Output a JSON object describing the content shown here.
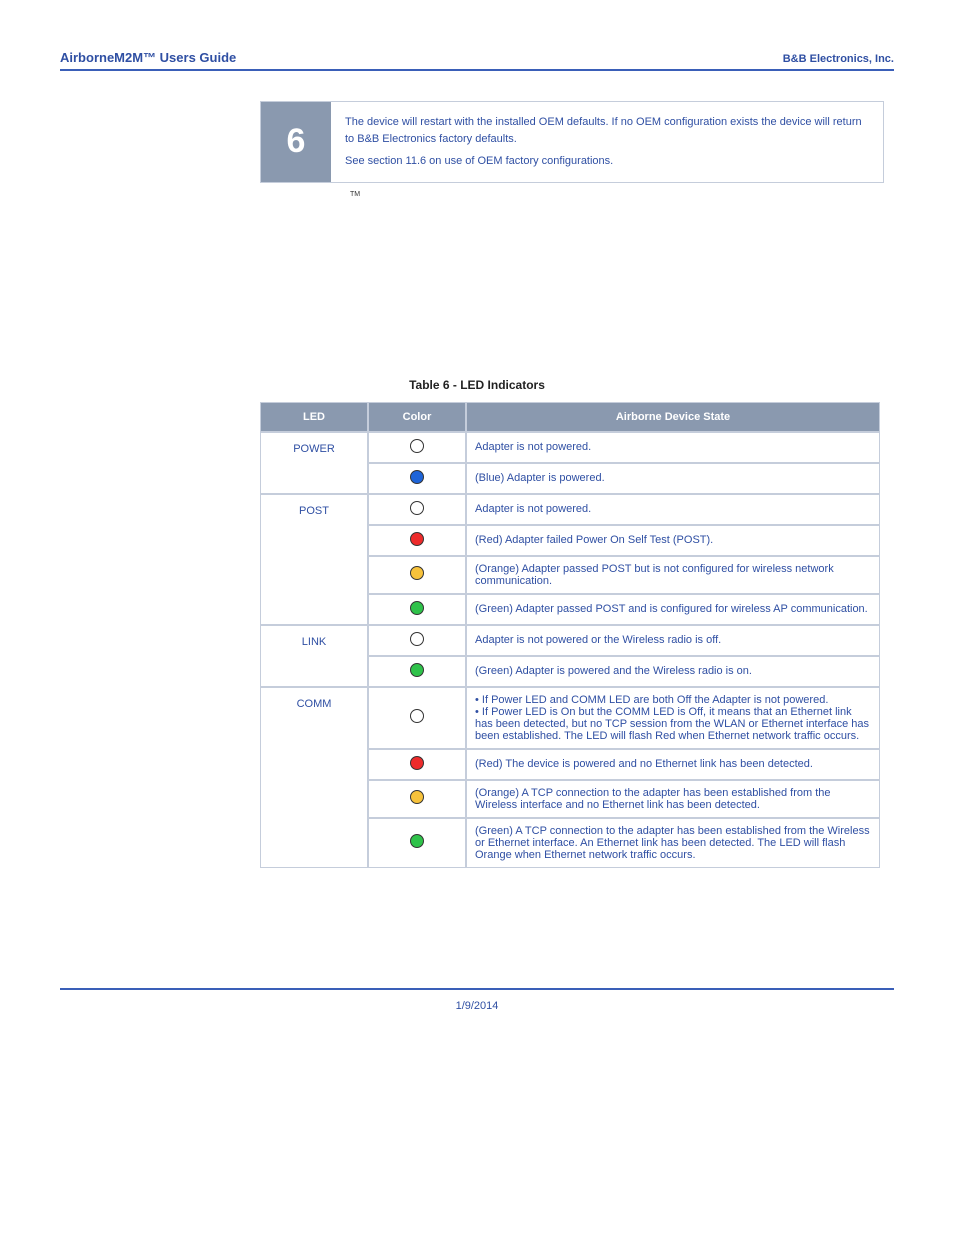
{
  "header": {
    "left": "AirborneM2M™ Users Guide",
    "right": "B&B Electronics, Inc."
  },
  "callout": {
    "number": "6",
    "p1": "The device will restart with the installed OEM defaults. If no OEM configuration exists the device will return to B&B Electronics factory defaults.",
    "p2": "See section 11.6 on use of OEM factory configurations."
  },
  "tm": "TM",
  "table_caption": "Table 6 - LED Indicators",
  "th": {
    "led": "LED",
    "color": "Color",
    "state": "Airborne Device State"
  },
  "colors": {
    "off": "#ffffff",
    "blue": "#1e64d8",
    "red": "#ed2b2b",
    "orange": "#f7c23b",
    "green": "#2fc24a"
  },
  "rows": {
    "power_label": "POWER",
    "power_off": "Adapter is not powered.",
    "power_blue": "(Blue) Adapter is powered.",
    "post_label": "POST",
    "post_off": "Adapter is not powered.",
    "post_red": "(Red) Adapter failed Power On Self Test (POST).",
    "post_orange": "(Orange) Adapter passed POST but is not configured for wireless network communication.",
    "post_green": "(Green) Adapter passed POST and is configured for wireless AP communication.",
    "link_label": "LINK",
    "link_off": "Adapter is not powered or the Wireless radio is off.",
    "link_green": "(Green) Adapter is powered and the Wireless radio is on.",
    "comm_label": "COMM",
    "comm_off_b1": "• If Power LED and COMM LED are both Off the Adapter is not powered.",
    "comm_off_b2": "• If Power LED is On but the COMM LED is Off, it means that an Ethernet link has been detected, but no TCP session from the WLAN or Ethernet interface has been established. The LED will flash Red when Ethernet network traffic occurs.",
    "comm_red": "(Red) The device is powered and no Ethernet link has been detected.",
    "comm_orange": "(Orange) A TCP connection to the adapter has been established from the Wireless interface and no Ethernet link has been detected.",
    "comm_green": "(Green) A TCP connection to the adapter has been established from the Wireless or Ethernet interface. An Ethernet link has been detected. The LED will flash Orange when Ethernet network traffic occurs."
  },
  "footer": {
    "date": "1/9/2014"
  }
}
